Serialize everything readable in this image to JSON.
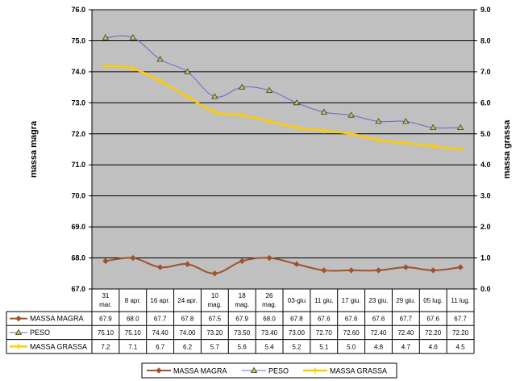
{
  "chart_data": {
    "type": "line",
    "title": "",
    "ylabel_left": "massa magra",
    "ylabel_right": "massa grassa",
    "ylim_left": [
      67.0,
      76.0
    ],
    "ylim_right": [
      0.0,
      9.0
    ],
    "yticks_left": [
      "76.0",
      "75.0",
      "74.0",
      "73.0",
      "72.0",
      "71.0",
      "70.0",
      "69.0",
      "68.0",
      "67.0"
    ],
    "yticks_right": [
      "9.0",
      "8.0",
      "7.0",
      "6.0",
      "5.0",
      "4.0",
      "3.0",
      "2.0",
      "1.0",
      "0.0"
    ],
    "categories": [
      [
        "31",
        "mar."
      ],
      [
        "8 apr."
      ],
      [
        "16 apr."
      ],
      [
        "24 apr."
      ],
      [
        "10",
        "mag."
      ],
      [
        "18",
        "mag."
      ],
      [
        "26",
        "mag."
      ],
      [
        "03-giu"
      ],
      [
        "11 giu."
      ],
      [
        "17 giu."
      ],
      [
        "23 giu."
      ],
      [
        "29 giu."
      ],
      [
        "05 lug."
      ],
      [
        "11 lug."
      ]
    ],
    "series": [
      {
        "name": "MASSA MAGRA",
        "axis": "left",
        "color": "#A0522D",
        "marker": "diamond",
        "values": [
          67.9,
          68.0,
          67.7,
          67.8,
          67.5,
          67.9,
          68.0,
          67.8,
          67.6,
          67.6,
          67.6,
          67.7,
          67.6,
          67.7
        ],
        "labels": [
          "67.9",
          "68.0",
          "67.7",
          "67.8",
          "67.5",
          "67.9",
          "68.0",
          "67.8",
          "67.6",
          "67.6",
          "67.6",
          "67.7",
          "67.6",
          "67.7"
        ]
      },
      {
        "name": "PESO",
        "axis": "left",
        "color": "#6666CC",
        "marker": "triangle",
        "values": [
          75.1,
          75.1,
          74.4,
          74.0,
          73.2,
          73.5,
          73.4,
          73.0,
          72.7,
          72.6,
          72.4,
          72.4,
          72.2,
          72.2
        ],
        "labels": [
          "75.10",
          "75.10",
          "74.40",
          "74.00",
          "73.20",
          "73.50",
          "73.40",
          "73.00",
          "72.70",
          "72.60",
          "72.40",
          "72.40",
          "72.20",
          "72.20"
        ]
      },
      {
        "name": "MASSA GRASSA",
        "axis": "right",
        "color": "#FFCC00",
        "marker": "star",
        "values": [
          7.2,
          7.1,
          6.7,
          6.2,
          5.7,
          5.6,
          5.4,
          5.2,
          5.1,
          5.0,
          4.8,
          4.7,
          4.6,
          4.5
        ],
        "labels": [
          "7.2",
          "7.1",
          "6.7",
          "6.2",
          "5.7",
          "5.6",
          "5.4",
          "5.2",
          "5.1",
          "5.0",
          "4.8",
          "4.7",
          "4.6",
          "4.5"
        ]
      }
    ],
    "plot_background": "#C0C0C0",
    "grid": true,
    "legend": "bottom"
  }
}
